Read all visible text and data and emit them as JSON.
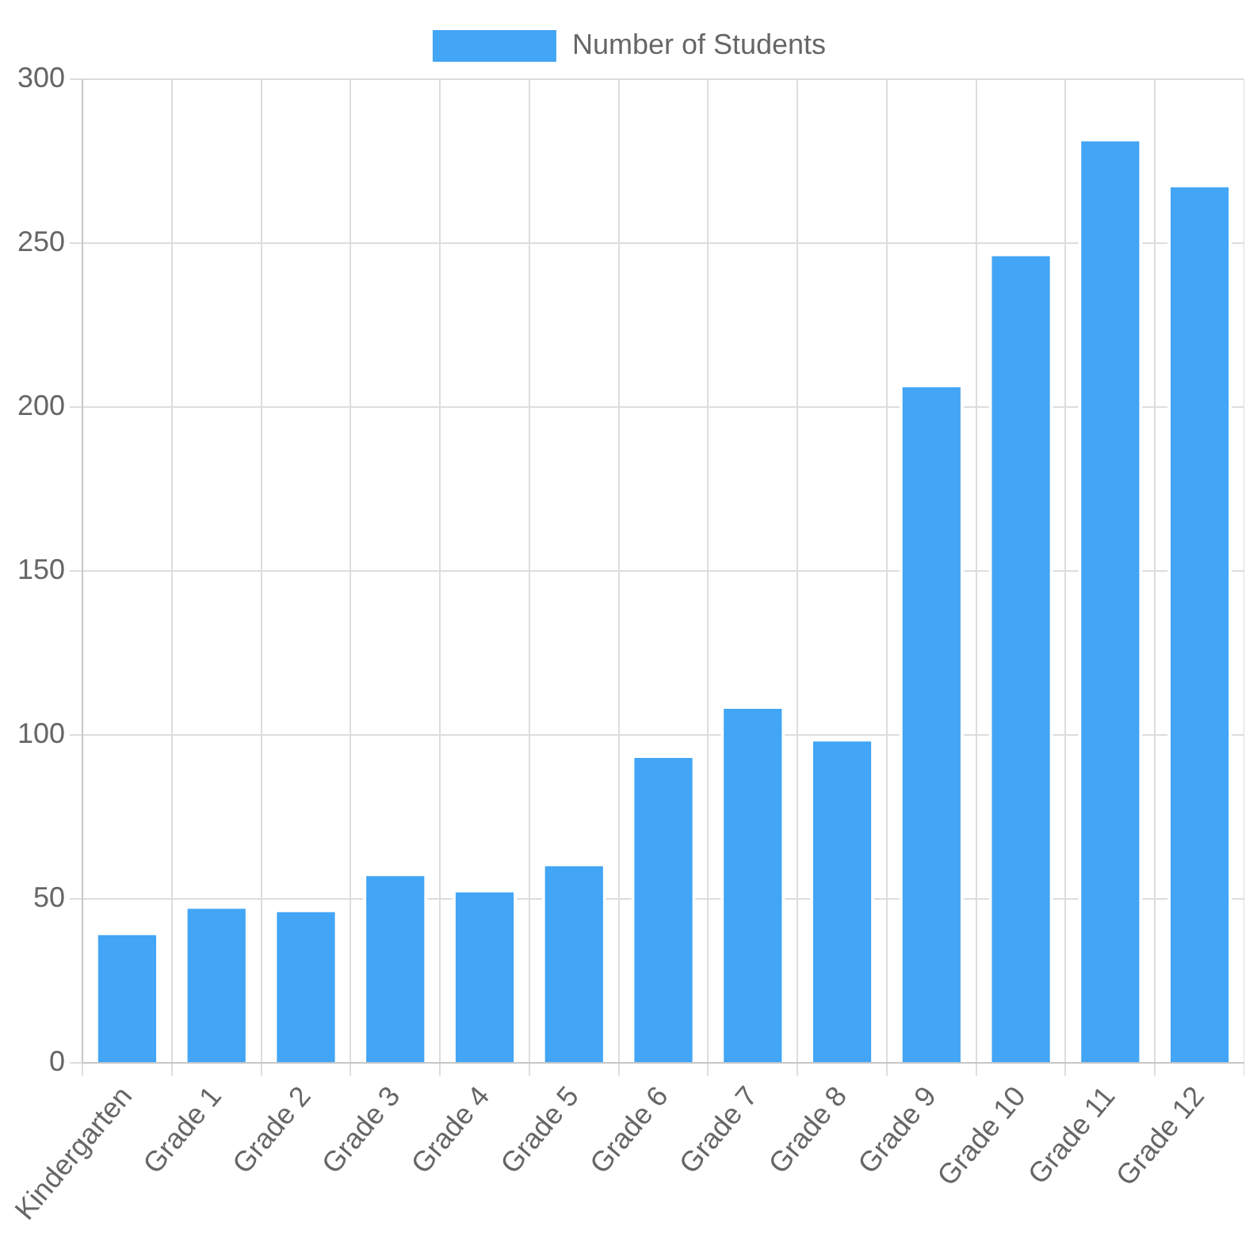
{
  "chart_data": {
    "type": "bar",
    "categories": [
      "Kindergarten",
      "Grade 1",
      "Grade 2",
      "Grade 3",
      "Grade 4",
      "Grade 5",
      "Grade 6",
      "Grade 7",
      "Grade 8",
      "Grade 9",
      "Grade 10",
      "Grade 11",
      "Grade 12"
    ],
    "series": [
      {
        "name": "Number of Students",
        "color": "#42a5f5",
        "values": [
          40,
          48,
          47,
          58,
          53,
          61,
          94,
          109,
          99,
          207,
          247,
          282,
          268
        ]
      }
    ],
    "ylim": [
      0,
      300
    ],
    "yticks": [
      0,
      50,
      100,
      150,
      200,
      250,
      300
    ],
    "grid": true,
    "legend": "top"
  }
}
